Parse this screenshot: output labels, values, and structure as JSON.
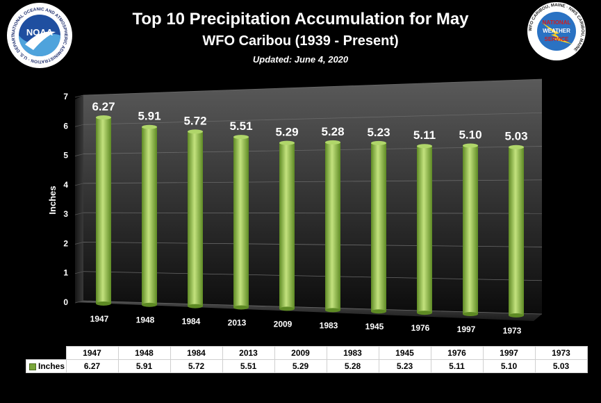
{
  "title": "Top 10 Precipitation Accumulation for May",
  "subtitle": "WFO Caribou (1939 - Present)",
  "updated": "Updated: June 4, 2020",
  "noaa_logo": {
    "abbr": "NOAA",
    "ring_text": "NATIONAL OCEANIC AND ATMOSPHERIC ADMINISTRATION · U.S. DEPARTMENT OF COMMERCE"
  },
  "nws_logo": {
    "lines": [
      "NATIONAL",
      "WEATHER",
      "SERVICE"
    ],
    "ring_text": "WFO CARIBOU, MAINE · NWS CARIBOU, MAINE"
  },
  "colors": {
    "bar": "#8dbb48",
    "bar_dark": "#5e8a24",
    "bar_light": "#c3e27e",
    "background": "#000000"
  },
  "chart_data": {
    "type": "bar",
    "categories": [
      "1947",
      "1948",
      "1984",
      "2013",
      "2009",
      "1983",
      "1945",
      "1976",
      "1997",
      "1973"
    ],
    "series": [
      {
        "name": "Inches",
        "values": [
          6.27,
          5.91,
          5.72,
          5.51,
          5.29,
          5.28,
          5.23,
          5.11,
          5.1,
          5.03
        ]
      }
    ],
    "data_labels": [
      "6.27",
      "5.91",
      "5.72",
      "5.51",
      "5.29",
      "5.28",
      "5.23",
      "5.11",
      "5.10",
      "5.03"
    ],
    "ylabel": "Inches",
    "xlabel": "",
    "ylim": [
      0,
      7
    ],
    "yticks": [
      0,
      1,
      2,
      3,
      4,
      5,
      6,
      7
    ],
    "grid": true,
    "legend": "data-table"
  }
}
